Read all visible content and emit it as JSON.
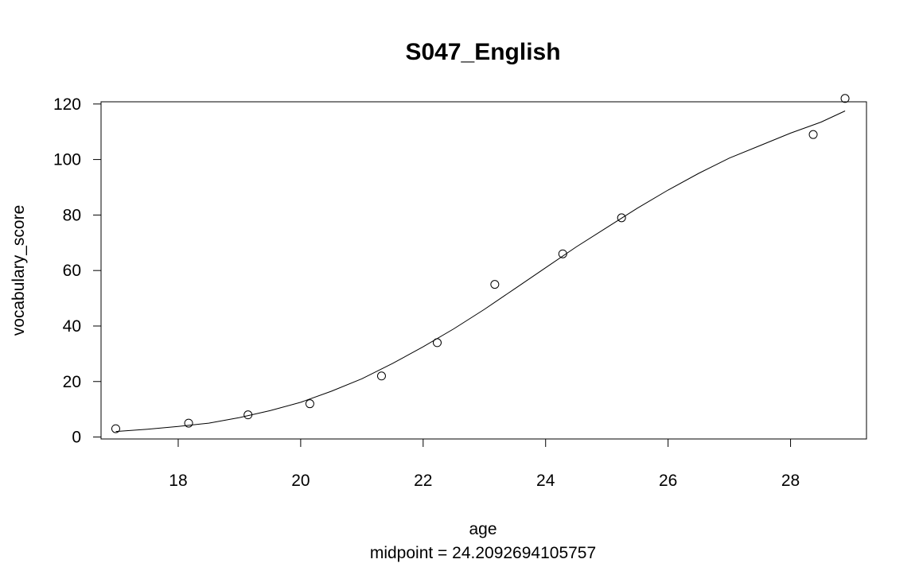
{
  "chart_data": {
    "type": "scatter",
    "title": "S047_English",
    "xlabel": "age",
    "subtitle": "midpoint = 24.2092694105757",
    "ylabel": "vocabulary_score",
    "xlim": [
      16.74,
      29.24
    ],
    "ylim": [
      -0.7,
      120.8
    ],
    "xticks": [
      18,
      20,
      22,
      24,
      26,
      28
    ],
    "yticks": [
      0,
      20,
      40,
      60,
      80,
      100,
      120
    ],
    "grid": false,
    "points": [
      {
        "x": 16.98,
        "y": 3
      },
      {
        "x": 18.17,
        "y": 5
      },
      {
        "x": 19.14,
        "y": 8
      },
      {
        "x": 20.15,
        "y": 12
      },
      {
        "x": 21.32,
        "y": 22
      },
      {
        "x": 22.23,
        "y": 34
      },
      {
        "x": 23.17,
        "y": 55
      },
      {
        "x": 24.28,
        "y": 66
      },
      {
        "x": 25.24,
        "y": 79
      },
      {
        "x": 28.37,
        "y": 109
      },
      {
        "x": 28.89,
        "y": 122
      }
    ],
    "fit_line": {
      "x": [
        16.98,
        17.5,
        18.0,
        18.5,
        19.0,
        19.5,
        20.0,
        20.5,
        21.0,
        21.5,
        22.0,
        22.5,
        23.0,
        23.5,
        24.0,
        24.5,
        25.0,
        25.5,
        26.0,
        26.5,
        27.0,
        27.5,
        28.0,
        28.5,
        28.89
      ],
      "y": [
        2.0,
        2.8,
        3.8,
        5.0,
        7.0,
        9.5,
        12.5,
        16.5,
        21.0,
        26.5,
        32.5,
        39.0,
        46.0,
        53.5,
        61.0,
        68.5,
        75.5,
        82.5,
        89.0,
        95.0,
        100.5,
        105.0,
        109.5,
        113.5,
        117.5
      ]
    }
  }
}
